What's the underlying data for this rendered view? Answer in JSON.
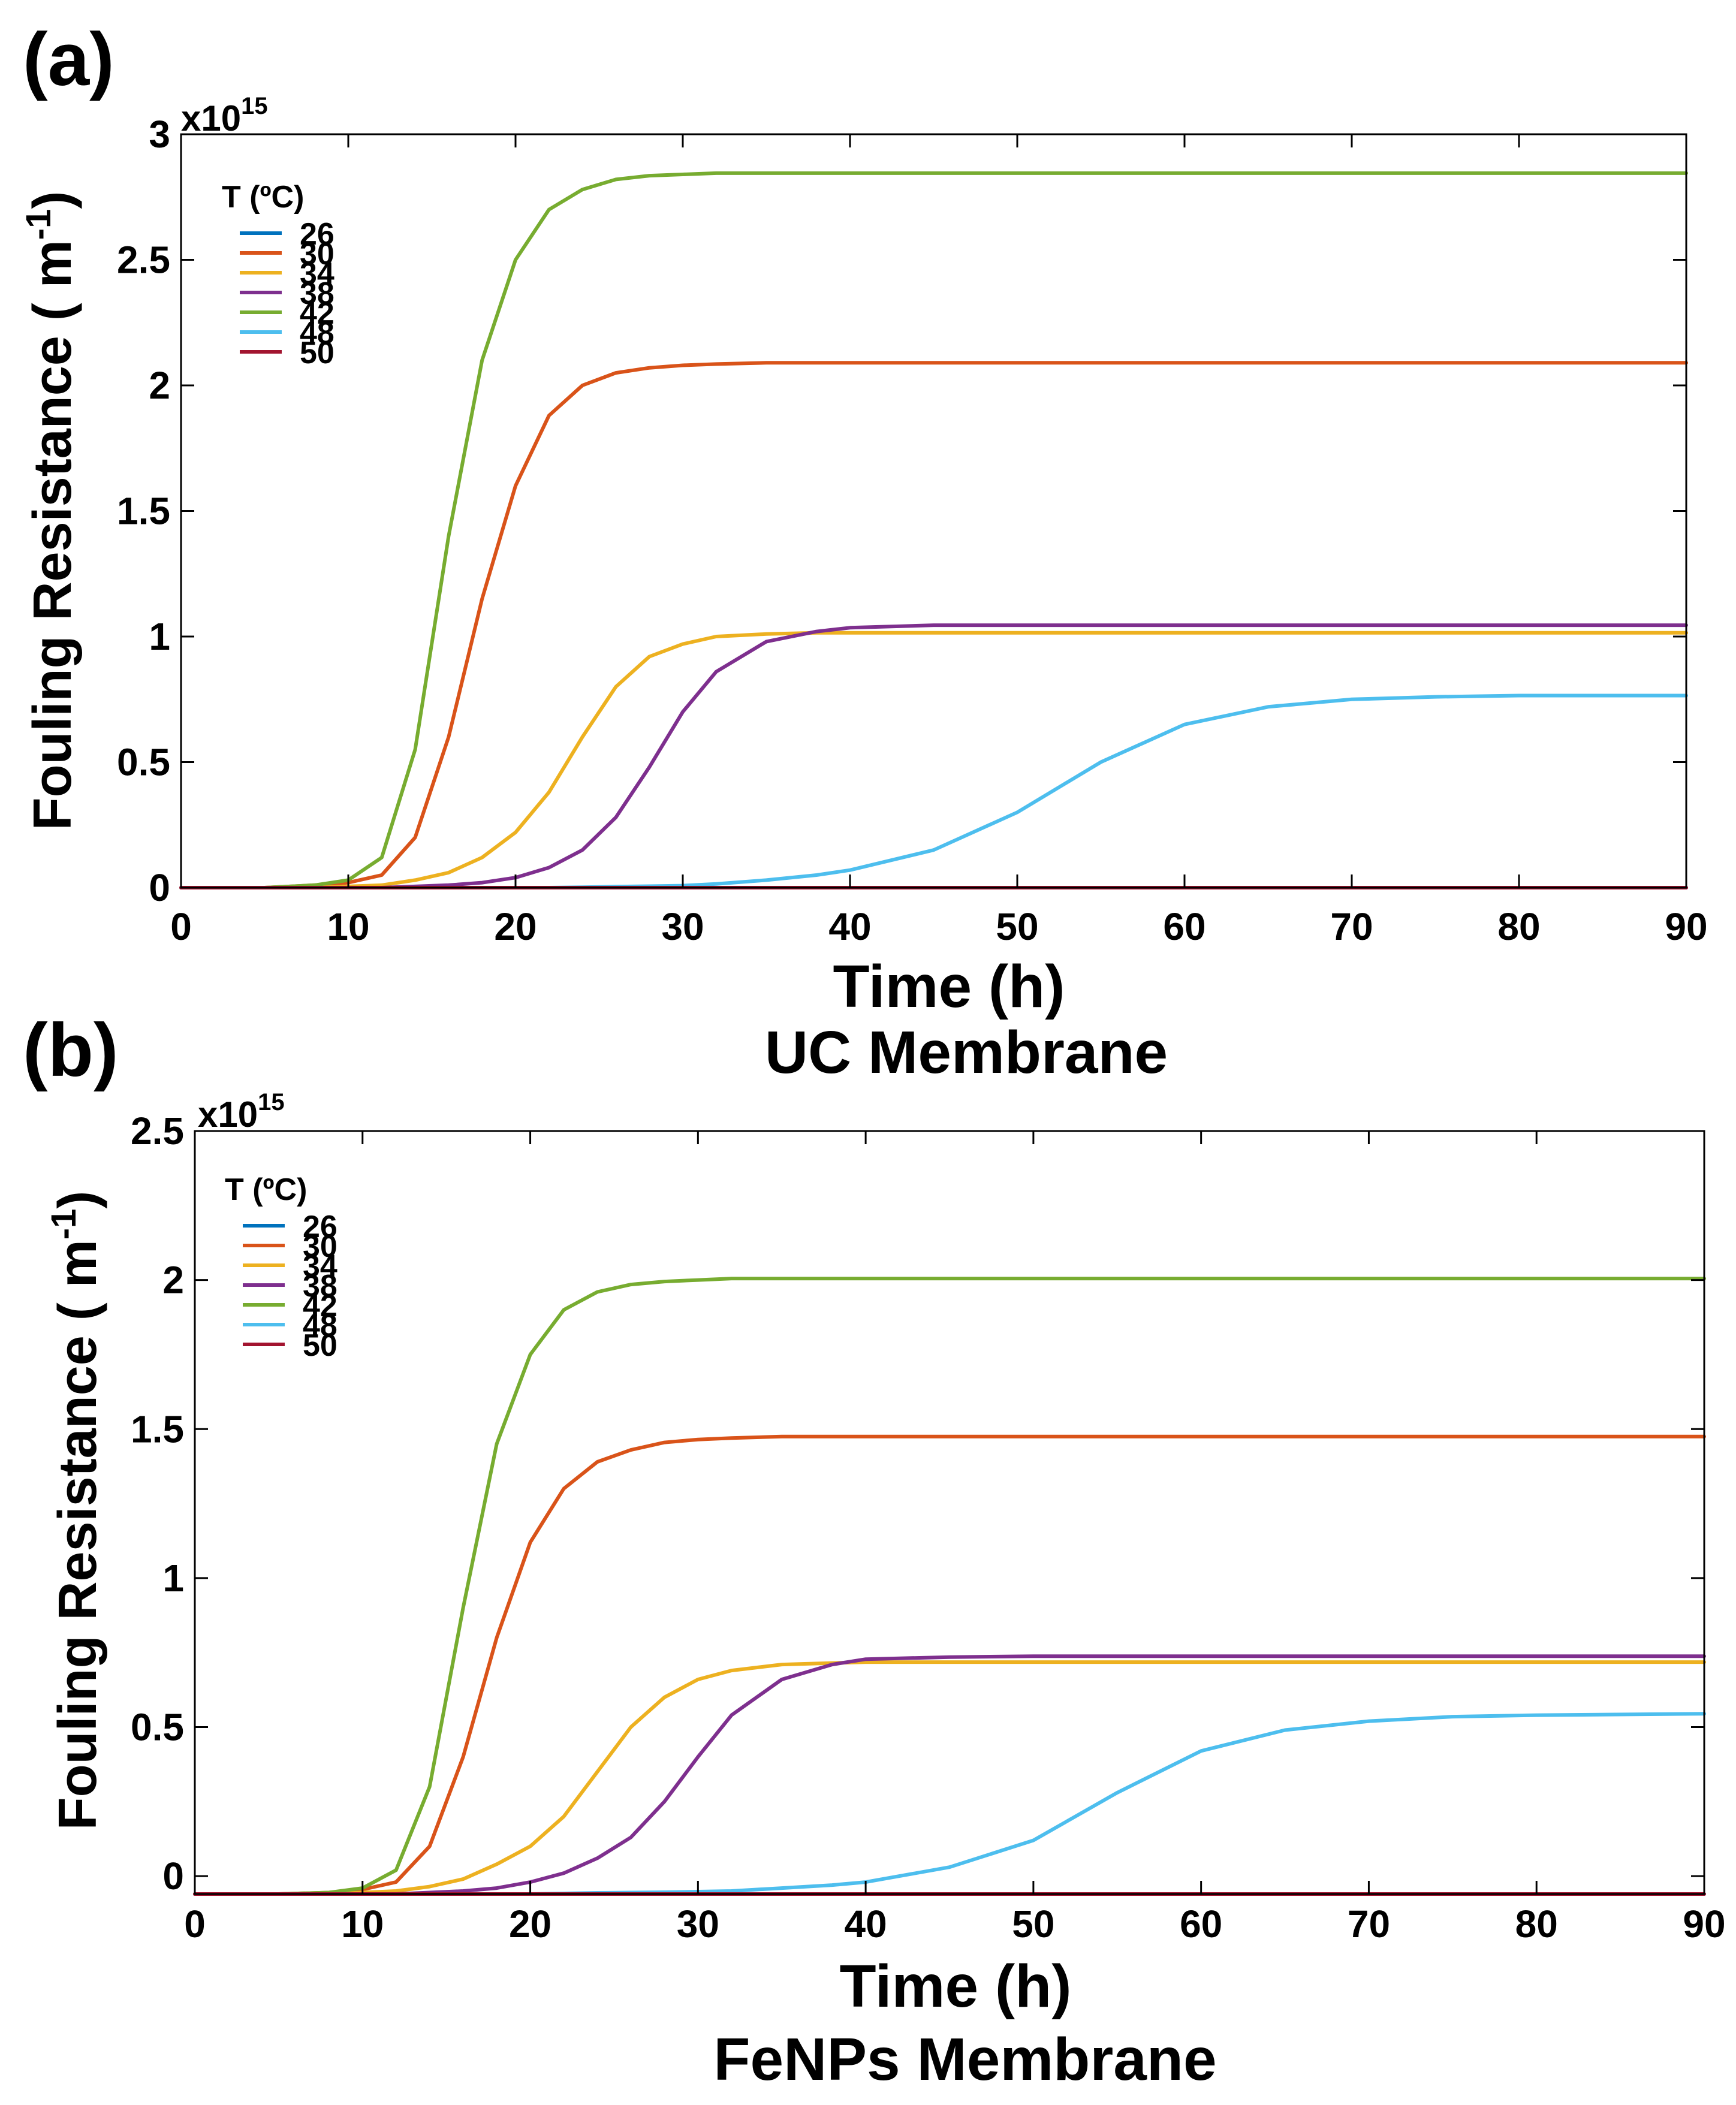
{
  "chart_data": [
    {
      "type": "line",
      "panel_label": "(a)",
      "subtitle": "UC Membrane",
      "xlabel": "Time (h)",
      "ylabel": "Fouling Resistance ( m-1)",
      "ylabel_main": "Fouling Resistance ( m",
      "ylabel_sup": "-1",
      "ylabel_close": ")",
      "y_multiplier": "x10",
      "y_multiplier_exp": "15",
      "xlim": [
        0,
        90
      ],
      "ylim": [
        0,
        3
      ],
      "x_ticks": [
        0,
        10,
        20,
        30,
        40,
        50,
        60,
        70,
        80,
        90
      ],
      "y_ticks": [
        0,
        0.5,
        1,
        1.5,
        2,
        2.5,
        3
      ],
      "y_tick_labels": [
        "0",
        "0.5",
        "1",
        "1.5",
        "2",
        "2.5",
        "3"
      ],
      "legend_title": "T (ºC)",
      "legend_position": "top-left",
      "grid": false,
      "x": [
        0,
        5,
        8,
        10,
        12,
        14,
        16,
        18,
        20,
        22,
        24,
        26,
        28,
        30,
        32,
        35,
        38,
        40,
        45,
        50,
        55,
        60,
        65,
        70,
        75,
        80,
        90
      ],
      "series": [
        {
          "name": "26",
          "color": "#0072BD",
          "values": [
            0,
            0,
            0,
            0,
            0,
            0,
            0,
            0,
            0,
            0,
            0,
            0,
            0,
            0,
            0,
            0,
            0,
            0,
            0,
            0,
            0,
            0,
            0,
            0,
            0,
            0,
            0
          ]
        },
        {
          "name": "30",
          "color": "#D95319",
          "values": [
            0,
            0,
            0.01,
            0.02,
            0.05,
            0.2,
            0.6,
            1.15,
            1.6,
            1.88,
            2.0,
            2.05,
            2.07,
            2.08,
            2.085,
            2.09,
            2.09,
            2.09,
            2.09,
            2.09,
            2.09,
            2.09,
            2.09,
            2.09,
            2.09,
            2.09,
            2.09
          ]
        },
        {
          "name": "34",
          "color": "#EDB120",
          "values": [
            0,
            0,
            0,
            0.005,
            0.01,
            0.03,
            0.06,
            0.12,
            0.22,
            0.38,
            0.6,
            0.8,
            0.92,
            0.97,
            1.0,
            1.01,
            1.015,
            1.015,
            1.015,
            1.015,
            1.015,
            1.015,
            1.015,
            1.015,
            1.015,
            1.015,
            1.015
          ]
        },
        {
          "name": "38",
          "color": "#7E2F8E",
          "values": [
            0,
            0,
            0,
            0,
            0,
            0.005,
            0.01,
            0.02,
            0.04,
            0.08,
            0.15,
            0.28,
            0.48,
            0.7,
            0.86,
            0.98,
            1.02,
            1.035,
            1.045,
            1.045,
            1.045,
            1.045,
            1.045,
            1.045,
            1.045,
            1.045,
            1.045
          ]
        },
        {
          "name": "42",
          "color": "#77AC30",
          "values": [
            0,
            0,
            0.01,
            0.03,
            0.12,
            0.55,
            1.4,
            2.1,
            2.5,
            2.7,
            2.78,
            2.82,
            2.835,
            2.84,
            2.845,
            2.845,
            2.845,
            2.845,
            2.845,
            2.845,
            2.845,
            2.845,
            2.845,
            2.845,
            2.845,
            2.845,
            2.845
          ]
        },
        {
          "name": "48",
          "color": "#4DBEEE",
          "values": [
            0,
            0,
            0,
            0,
            0,
            0,
            0,
            0,
            0,
            0,
            0.002,
            0.004,
            0.006,
            0.008,
            0.015,
            0.03,
            0.05,
            0.07,
            0.15,
            0.3,
            0.5,
            0.65,
            0.72,
            0.75,
            0.76,
            0.765,
            0.765
          ]
        },
        {
          "name": "50",
          "color": "#A2142F",
          "values": [
            0,
            0,
            0,
            0,
            0,
            0,
            0,
            0,
            0,
            0,
            0,
            0,
            0,
            0,
            0,
            0,
            0,
            0,
            0,
            0,
            0,
            0,
            0,
            0,
            0,
            0,
            0
          ]
        }
      ]
    },
    {
      "type": "line",
      "panel_label": "(b)",
      "subtitle": "FeNPs Membrane",
      "xlabel": "Time (h)",
      "ylabel": "Fouling Resistance ( m-1)",
      "ylabel_main": "Fouling Resistance ( m",
      "ylabel_sup": "-1",
      "ylabel_close": ")",
      "y_multiplier": "x10",
      "y_multiplier_exp": "15",
      "xlim": [
        0,
        90
      ],
      "ylim": [
        -0.06,
        2.5
      ],
      "x_ticks": [
        0,
        10,
        20,
        30,
        40,
        50,
        60,
        70,
        80,
        90
      ],
      "y_ticks": [
        0,
        0.5,
        1,
        1.5,
        2,
        2.5
      ],
      "y_tick_labels": [
        "0",
        "0.5",
        "1",
        "1.5",
        "2",
        "2.5"
      ],
      "legend_title": "T (ºC)",
      "legend_position": "top-left",
      "grid": false,
      "x": [
        0,
        5,
        8,
        10,
        12,
        14,
        16,
        18,
        20,
        22,
        24,
        26,
        28,
        30,
        32,
        35,
        38,
        40,
        45,
        50,
        55,
        60,
        65,
        70,
        75,
        80,
        90
      ],
      "series": [
        {
          "name": "26",
          "color": "#0072BD",
          "values": [
            -0.06,
            -0.06,
            -0.06,
            -0.06,
            -0.06,
            -0.06,
            -0.06,
            -0.06,
            -0.06,
            -0.06,
            -0.06,
            -0.06,
            -0.06,
            -0.06,
            -0.06,
            -0.06,
            -0.06,
            -0.06,
            -0.06,
            -0.06,
            -0.06,
            -0.06,
            -0.06,
            -0.06,
            -0.06,
            -0.06,
            -0.06
          ]
        },
        {
          "name": "30",
          "color": "#D95319",
          "values": [
            -0.06,
            -0.06,
            -0.055,
            -0.045,
            -0.02,
            0.1,
            0.4,
            0.8,
            1.12,
            1.3,
            1.39,
            1.43,
            1.455,
            1.465,
            1.47,
            1.475,
            1.475,
            1.475,
            1.475,
            1.475,
            1.475,
            1.475,
            1.475,
            1.475,
            1.475,
            1.475,
            1.475
          ]
        },
        {
          "name": "34",
          "color": "#EDB120",
          "values": [
            -0.06,
            -0.06,
            -0.06,
            -0.055,
            -0.05,
            -0.035,
            -0.01,
            0.04,
            0.1,
            0.2,
            0.35,
            0.5,
            0.6,
            0.66,
            0.69,
            0.71,
            0.715,
            0.718,
            0.718,
            0.718,
            0.718,
            0.718,
            0.718,
            0.718,
            0.718,
            0.718,
            0.718
          ]
        },
        {
          "name": "38",
          "color": "#7E2F8E",
          "values": [
            -0.06,
            -0.06,
            -0.06,
            -0.06,
            -0.06,
            -0.055,
            -0.05,
            -0.04,
            -0.02,
            0.01,
            0.06,
            0.13,
            0.25,
            0.4,
            0.54,
            0.66,
            0.71,
            0.728,
            0.735,
            0.738,
            0.738,
            0.738,
            0.738,
            0.738,
            0.738,
            0.738,
            0.738
          ]
        },
        {
          "name": "42",
          "color": "#77AC30",
          "values": [
            -0.06,
            -0.06,
            -0.055,
            -0.04,
            0.02,
            0.3,
            0.9,
            1.45,
            1.75,
            1.9,
            1.96,
            1.985,
            1.995,
            2.0,
            2.005,
            2.005,
            2.005,
            2.005,
            2.005,
            2.005,
            2.005,
            2.005,
            2.005,
            2.005,
            2.005,
            2.005,
            2.005
          ]
        },
        {
          "name": "48",
          "color": "#4DBEEE",
          "values": [
            -0.06,
            -0.06,
            -0.06,
            -0.06,
            -0.06,
            -0.06,
            -0.06,
            -0.06,
            -0.06,
            -0.058,
            -0.056,
            -0.055,
            -0.054,
            -0.052,
            -0.05,
            -0.04,
            -0.03,
            -0.02,
            0.03,
            0.12,
            0.28,
            0.42,
            0.49,
            0.52,
            0.535,
            0.54,
            0.545
          ]
        },
        {
          "name": "50",
          "color": "#A2142F",
          "values": [
            -0.06,
            -0.06,
            -0.06,
            -0.06,
            -0.06,
            -0.06,
            -0.06,
            -0.06,
            -0.06,
            -0.06,
            -0.06,
            -0.06,
            -0.06,
            -0.06,
            -0.06,
            -0.06,
            -0.06,
            -0.06,
            -0.06,
            -0.06,
            -0.06,
            -0.06,
            -0.06,
            -0.06,
            -0.06,
            -0.06,
            -0.06
          ]
        }
      ]
    }
  ]
}
